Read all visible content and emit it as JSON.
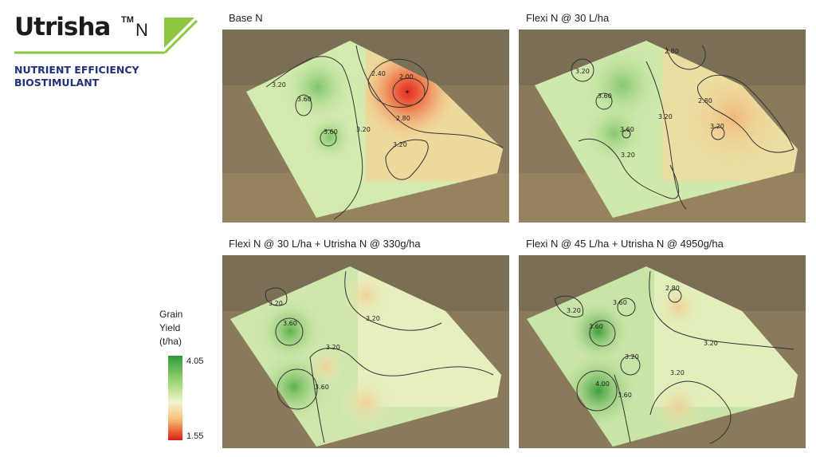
{
  "brand": {
    "name": "Utrisha",
    "trademark": "TM",
    "suffix": "N",
    "tagline_line1": "NUTRIENT EFFICIENCY",
    "tagline_line2": "BIOSTIMULANT"
  },
  "legend": {
    "title_line1": "Grain",
    "title_line2": "Yield",
    "title_line3": "(t/ha)",
    "max": "4.05",
    "min": "1.55",
    "colors": {
      "high": "#2e9a3c",
      "mid": "#f3f4ce",
      "low": "#d91d1d"
    }
  },
  "panels": [
    {
      "title": "Base N",
      "contour_labels": [
        "3.20",
        "3.60",
        "3.60",
        "3.20",
        "2.40",
        "2.00",
        "2.80",
        "3.20"
      ]
    },
    {
      "title": "Flexi N @ 30 L/ha",
      "contour_labels": [
        "3.20",
        "3.60",
        "3.60",
        "3.20",
        "3.20",
        "2.80",
        "2.80",
        "3.20"
      ]
    },
    {
      "title": "Flexi N @ 30 L/ha + Utrisha N @ 330g/ha",
      "contour_labels": [
        "3.20",
        "3.60",
        "3.20",
        "3.20",
        "3.60"
      ]
    },
    {
      "title": "Flexi N @ 45 L/ha + Utrisha N @ 4950g/ha",
      "contour_labels": [
        "3.20",
        "3.60",
        "3.60",
        "2.80",
        "3.20",
        "3.20",
        "4.00",
        "3.60",
        "3.20"
      ]
    }
  ]
}
